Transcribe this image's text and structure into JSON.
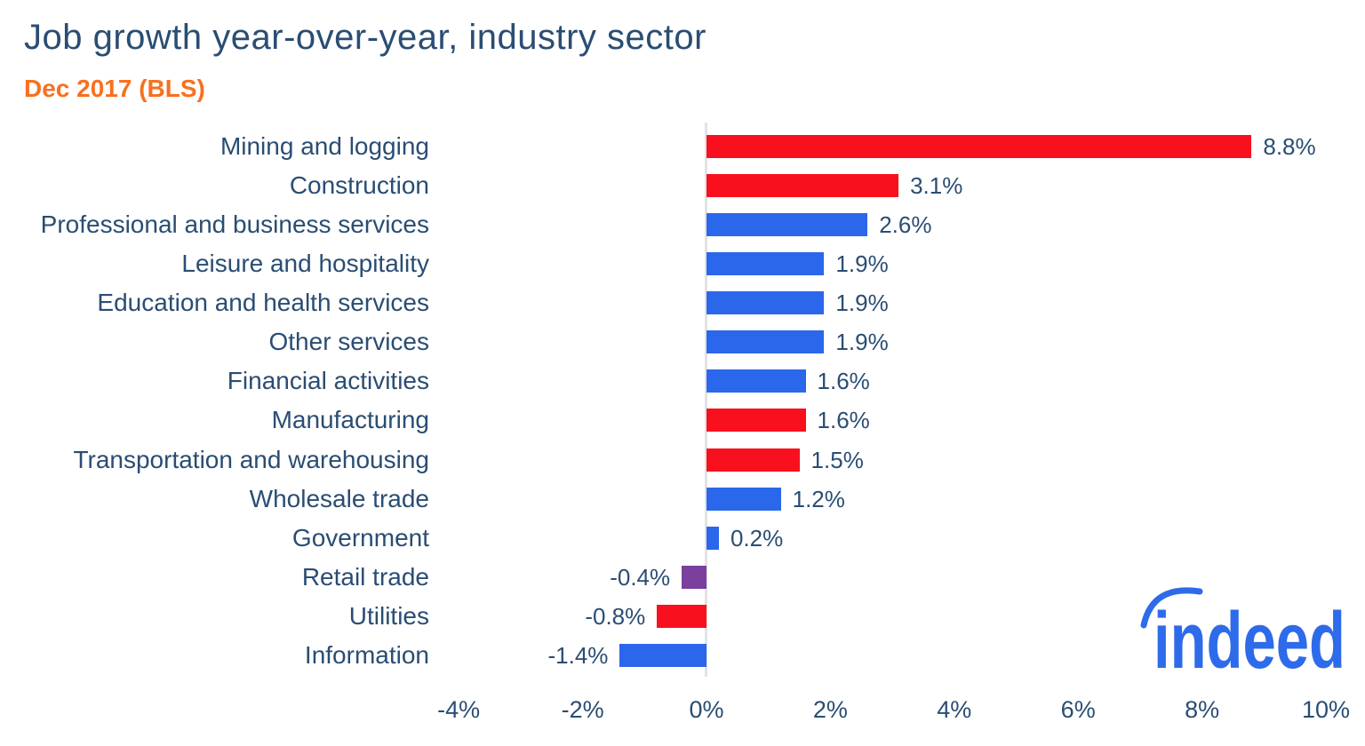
{
  "header": {
    "title": "Job growth year-over-year, industry sector",
    "subtitle": "Dec 2017 (BLS)",
    "title_color": "#2a4d73",
    "subtitle_color": "#f8701e"
  },
  "chart_data": {
    "type": "bar",
    "orientation": "horizontal",
    "title": "Job growth year-over-year, industry sector",
    "subtitle": "Dec 2017 (BLS)",
    "categories": [
      "Mining and logging",
      "Construction",
      "Professional and business services",
      "Leisure and hospitality",
      "Education and health services",
      "Other services",
      "Financial activities",
      "Manufacturing",
      "Transportation and warehousing",
      "Wholesale trade",
      "Government",
      "Retail trade",
      "Utilities",
      "Information"
    ],
    "values": [
      8.8,
      3.1,
      2.6,
      1.9,
      1.9,
      1.9,
      1.6,
      1.6,
      1.5,
      1.2,
      0.2,
      -0.4,
      -0.8,
      -1.4
    ],
    "value_labels": [
      "8.8%",
      "3.1%",
      "2.6%",
      "1.9%",
      "1.9%",
      "1.9%",
      "1.6%",
      "1.6%",
      "1.5%",
      "1.2%",
      "0.2%",
      "-0.4%",
      "-0.8%",
      "-1.4%"
    ],
    "bar_colors": [
      "#f9101e",
      "#f9101e",
      "#2b67eb",
      "#2b67eb",
      "#2b67eb",
      "#2b67eb",
      "#2b67eb",
      "#f9101e",
      "#f9101e",
      "#2b67eb",
      "#2b67eb",
      "#7b3f9e",
      "#f9101e",
      "#2b67eb"
    ],
    "xlabel": "",
    "ylabel": "",
    "xlim": [
      -4,
      10
    ],
    "xticks": [
      "-4%",
      "-2%",
      "0%",
      "2%",
      "4%",
      "6%",
      "8%",
      "10%"
    ],
    "xtick_values": [
      -4,
      -2,
      0,
      2,
      4,
      6,
      8,
      10
    ],
    "grid": false,
    "legend": false,
    "zero_axis_color": "#e3e3e3",
    "label_color": "#2a4d73"
  },
  "branding": {
    "logo_text": "indeed",
    "logo_color": "#2e6bea"
  }
}
